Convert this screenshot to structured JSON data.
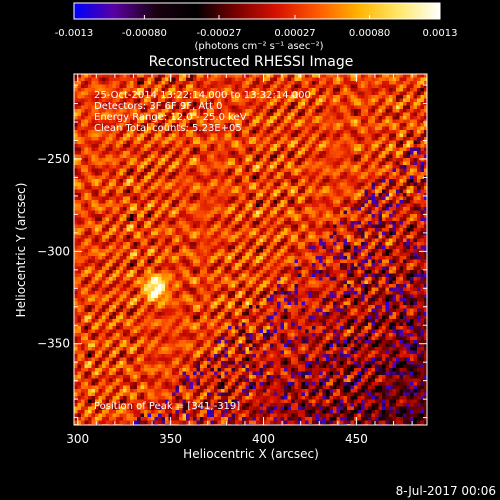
{
  "chart_data": {
    "type": "heatmap",
    "title": "Reconstructed RHESSI Image",
    "xlabel": "Heliocentric X (arcsec)",
    "ylabel": "Heliocentric Y (arcsec)",
    "xlim": [
      298,
      488
    ],
    "ylim": [
      -394,
      -204
    ],
    "x_ticks": [
      300,
      350,
      400,
      450
    ],
    "y_ticks": [
      -250,
      -300,
      -350
    ],
    "grid": false,
    "colorbar": {
      "position": "top",
      "min": -0.0013,
      "max": 0.0013,
      "tick_values": [
        -0.0013,
        -0.0008,
        -0.00027,
        0.00027,
        0.0008,
        0.0013
      ],
      "tick_labels": [
        "-0.0013",
        "-0.00080",
        "-0.00027",
        "0.00027",
        "0.00080",
        "0.0013"
      ],
      "unit_label": "(photons cm⁻² s⁻¹ asec⁻²)"
    },
    "colormap_stops": [
      "#0000ff",
      "#5a00a0",
      "#1a0010",
      "#000000",
      "#7a0000",
      "#d81200",
      "#ff5a00",
      "#ffb400",
      "#ffe86a",
      "#ffffff"
    ],
    "peak": {
      "x": 341,
      "y": -319
    },
    "annotations": {
      "time": "25-Oct-2014 13:22:14.000 to 13:32:14.000",
      "detectors": "Detectors: 3F 6F 9F, Att 0",
      "energy": "Energy Range: 12.0 - 25.0 keV",
      "method": "Clean      Total counts: 5.23E+05",
      "peak_text": "Position of Peak = [341,-319]"
    }
  },
  "footer_date": "8-Jul-2017 00:06"
}
